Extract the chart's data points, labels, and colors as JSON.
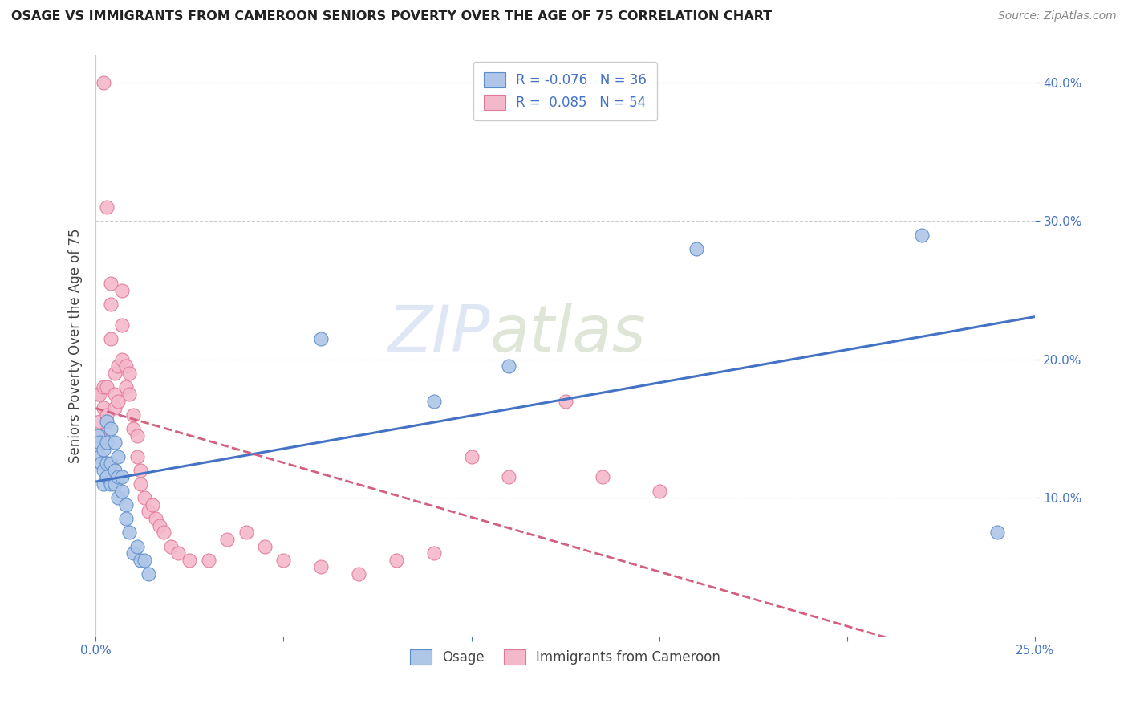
{
  "title": "OSAGE VS IMMIGRANTS FROM CAMEROON SENIORS POVERTY OVER THE AGE OF 75 CORRELATION CHART",
  "source": "Source: ZipAtlas.com",
  "ylabel": "Seniors Poverty Over the Age of 75",
  "xlim": [
    0.0,
    0.25
  ],
  "ylim": [
    0.0,
    0.42
  ],
  "yticks": [
    0.1,
    0.2,
    0.3,
    0.4
  ],
  "xticks": [
    0.0,
    0.05,
    0.1,
    0.15,
    0.2,
    0.25
  ],
  "legend_r_osage": "-0.076",
  "legend_n_osage": "36",
  "legend_r_cam": "0.085",
  "legend_n_cam": "54",
  "osage_color": "#aec6e8",
  "cam_color": "#f4b8cb",
  "osage_edge_color": "#5b8dc8",
  "cam_edge_color": "#e07898",
  "osage_line_color": "#4472c4",
  "cam_line_color": "#d46080",
  "watermark_zip": "ZIP",
  "watermark_atlas": "atlas",
  "background_color": "#ffffff",
  "grid_color": "#cccccc",
  "osage_x": [
    0.0005,
    0.001,
    0.001,
    0.0015,
    0.002,
    0.002,
    0.002,
    0.003,
    0.003,
    0.003,
    0.003,
    0.004,
    0.004,
    0.004,
    0.005,
    0.005,
    0.005,
    0.006,
    0.006,
    0.006,
    0.007,
    0.007,
    0.008,
    0.008,
    0.009,
    0.01,
    0.011,
    0.012,
    0.013,
    0.014,
    0.06,
    0.09,
    0.11,
    0.16,
    0.22,
    0.24
  ],
  "osage_y": [
    0.145,
    0.14,
    0.13,
    0.125,
    0.135,
    0.12,
    0.11,
    0.155,
    0.14,
    0.125,
    0.115,
    0.15,
    0.125,
    0.11,
    0.14,
    0.12,
    0.11,
    0.13,
    0.115,
    0.1,
    0.115,
    0.105,
    0.095,
    0.085,
    0.075,
    0.06,
    0.065,
    0.055,
    0.055,
    0.045,
    0.215,
    0.17,
    0.195,
    0.28,
    0.29,
    0.075
  ],
  "cam_x": [
    0.0005,
    0.001,
    0.001,
    0.001,
    0.002,
    0.002,
    0.002,
    0.003,
    0.003,
    0.003,
    0.004,
    0.004,
    0.004,
    0.005,
    0.005,
    0.005,
    0.006,
    0.006,
    0.007,
    0.007,
    0.007,
    0.008,
    0.008,
    0.009,
    0.009,
    0.01,
    0.01,
    0.011,
    0.011,
    0.012,
    0.012,
    0.013,
    0.014,
    0.015,
    0.016,
    0.017,
    0.018,
    0.02,
    0.022,
    0.025,
    0.03,
    0.035,
    0.04,
    0.045,
    0.05,
    0.06,
    0.07,
    0.08,
    0.09,
    0.1,
    0.11,
    0.125,
    0.135,
    0.15
  ],
  "cam_y": [
    0.175,
    0.175,
    0.155,
    0.145,
    0.4,
    0.18,
    0.165,
    0.31,
    0.18,
    0.16,
    0.255,
    0.24,
    0.215,
    0.19,
    0.175,
    0.165,
    0.195,
    0.17,
    0.25,
    0.225,
    0.2,
    0.195,
    0.18,
    0.19,
    0.175,
    0.16,
    0.15,
    0.145,
    0.13,
    0.12,
    0.11,
    0.1,
    0.09,
    0.095,
    0.085,
    0.08,
    0.075,
    0.065,
    0.06,
    0.055,
    0.055,
    0.07,
    0.075,
    0.065,
    0.055,
    0.05,
    0.045,
    0.055,
    0.06,
    0.13,
    0.115,
    0.17,
    0.115,
    0.105
  ]
}
